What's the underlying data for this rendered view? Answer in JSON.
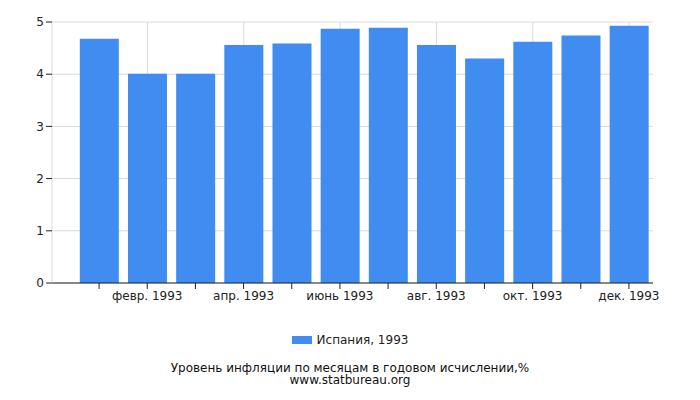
{
  "chart_data": {
    "type": "bar",
    "title": "Уровень инфляции по месяцам в годовом исчислении,%",
    "subtitle": "www.statbureau.org",
    "categories": [
      null,
      "февр. 1993",
      null,
      "апр. 1993",
      null,
      "июнь 1993",
      null,
      "авг. 1993",
      null,
      "окт. 1993",
      null,
      "дек. 1993"
    ],
    "series": [
      {
        "name": "Испания, 1993",
        "color": "#418cf0",
        "values": [
          4.68,
          4.01,
          4.01,
          4.56,
          4.59,
          4.87,
          4.89,
          4.56,
          4.3,
          4.62,
          4.74,
          4.93
        ]
      }
    ],
    "ylim": [
      0,
      5
    ],
    "yticks": [
      0,
      1,
      2,
      3,
      4,
      5
    ],
    "grid": true,
    "legend": "bottom"
  }
}
